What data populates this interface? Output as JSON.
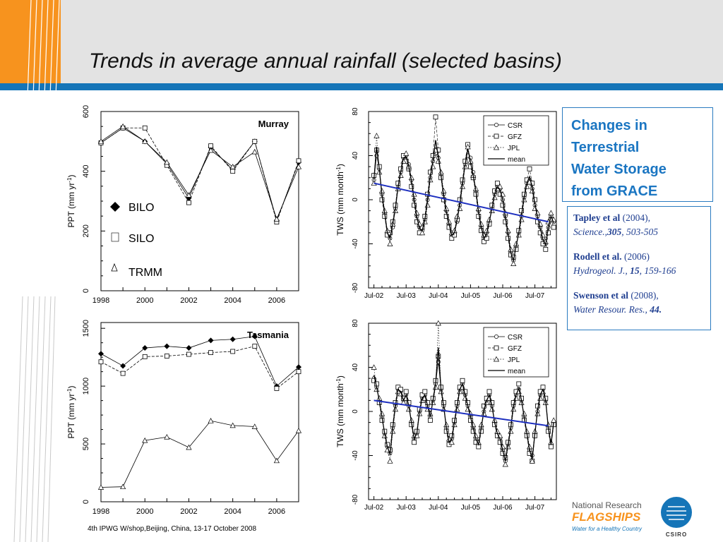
{
  "title": "Trends in average annual rainfall (selected basins)",
  "footer": "4th IPWG W/shop,Beijing, China, 13-17 October 2008",
  "grace_box": [
    "Changes in",
    "Terrestrial",
    "Water Storage",
    "from GRACE"
  ],
  "references": [
    {
      "author": "Tapley et al",
      "year": " (2004),",
      "journal": "Science.,",
      "volume": "305",
      "pages": ", 503-505"
    },
    {
      "author": "Rodell et al.",
      "year": " (2006)",
      "journal": "Hydrogeol. J.,",
      "volume": "15",
      "pages": ", 159-166"
    },
    {
      "author": "Swenson et al",
      "year": " (2008),",
      "journal": "Water Resour. Res.,",
      "volume": "44",
      "pages": "."
    }
  ],
  "logo": {
    "line1": "National Research",
    "line2": "FLAGSHIPS",
    "line3": "Water for a Healthy Country",
    "csiro": "CSIRO"
  },
  "colors": {
    "orange": "#f7931e",
    "accent_blue": "#1575b8",
    "text_blue": "#1b76c2",
    "trend_line": "#1d2fbf"
  },
  "chart_data": [
    {
      "type": "line",
      "title": "Murray",
      "ylabel": "PPT (mm yr-1)",
      "xlabel": "",
      "x": [
        1998,
        1999,
        2000,
        2001,
        2002,
        2003,
        2004,
        2005,
        2006,
        2007
      ],
      "xticks": [
        "1998",
        "2000",
        "2002",
        "2004",
        "2006"
      ],
      "yticks": [
        "0",
        "200",
        "400",
        "600"
      ],
      "ylim": [
        0,
        600
      ],
      "xlim": [
        1998,
        2007
      ],
      "legend": {
        "placement": "left",
        "entries": [
          "BILO",
          "SILO",
          "TRMM"
        ]
      },
      "series": [
        {
          "name": "BILO",
          "marker": "diamond",
          "values": [
            495,
            545,
            500,
            425,
            310,
            480,
            405,
            500,
            235,
            430
          ]
        },
        {
          "name": "SILO",
          "marker": "square",
          "values": [
            495,
            545,
            545,
            420,
            295,
            485,
            400,
            500,
            230,
            435
          ]
        },
        {
          "name": "TRMM",
          "marker": "triangle",
          "values": [
            500,
            550,
            500,
            430,
            320,
            470,
            415,
            465,
            240,
            415
          ]
        }
      ]
    },
    {
      "type": "line",
      "title": "Tasmania",
      "ylabel": "PPT (mm yr-1)",
      "xlabel": "",
      "x": [
        1998,
        1999,
        2000,
        2001,
        2002,
        2003,
        2004,
        2005,
        2006,
        2007
      ],
      "xticks": [
        "1998",
        "2000",
        "2002",
        "2004",
        "2006"
      ],
      "yticks": [
        "0",
        "500",
        "1000",
        "1500"
      ],
      "ylim": [
        0,
        1550
      ],
      "xlim": [
        1998,
        2007
      ],
      "series": [
        {
          "name": "BILO",
          "marker": "diamond",
          "values": [
            1280,
            1175,
            1330,
            1345,
            1330,
            1395,
            1405,
            1430,
            1000,
            1165
          ]
        },
        {
          "name": "SILO",
          "marker": "square",
          "values": [
            1210,
            1110,
            1255,
            1260,
            1275,
            1290,
            1300,
            1345,
            980,
            1125
          ]
        },
        {
          "name": "TRMM",
          "marker": "triangle",
          "values": [
            125,
            130,
            530,
            560,
            470,
            700,
            660,
            650,
            355,
            615
          ]
        }
      ]
    },
    {
      "type": "line",
      "title": "",
      "ylabel": "TWS (mm month-1)",
      "xlabel": "",
      "xticks": [
        "Jul-02",
        "Jul-03",
        "Jul-04",
        "Jul-05",
        "Jul-06",
        "Jul-07"
      ],
      "xtick_pos": [
        0,
        12,
        24,
        36,
        48,
        60
      ],
      "x": [
        0,
        1,
        2,
        3,
        4,
        5,
        6,
        7,
        8,
        9,
        10,
        11,
        12,
        13,
        14,
        15,
        16,
        17,
        18,
        19,
        20,
        21,
        22,
        23,
        24,
        25,
        26,
        27,
        28,
        29,
        30,
        31,
        32,
        33,
        34,
        35,
        36,
        37,
        38,
        39,
        40,
        41,
        42,
        43,
        44,
        45,
        46,
        47,
        48,
        49,
        50,
        51,
        52,
        53,
        54,
        55,
        56,
        57,
        58,
        59,
        60,
        61,
        62,
        63,
        64,
        65,
        66,
        67
      ],
      "yticks": [
        "-80",
        "-40",
        "0",
        "40",
        "80"
      ],
      "ylim": [
        -80,
        80
      ],
      "xlim": [
        -2,
        68
      ],
      "legend": {
        "placement": "top-right",
        "entries": [
          "CSR",
          "GFZ",
          "JPL",
          "mean"
        ]
      },
      "series": [
        {
          "name": "CSR",
          "marker": "circle",
          "values": [
            18,
            40,
            28,
            5,
            -12,
            -30,
            -35,
            -25,
            -8,
            12,
            25,
            38,
            40,
            32,
            18,
            0,
            -15,
            -25,
            -28,
            -18,
            0,
            20,
            35,
            42,
            38,
            22,
            5,
            -10,
            -22,
            -32,
            -30,
            -20,
            -5,
            15,
            32,
            40,
            38,
            25,
            8,
            -10,
            -25,
            -35,
            -30,
            -20,
            -8,
            5,
            12,
            10,
            0,
            -15,
            -30,
            -48,
            -55,
            -42,
            -30,
            -15,
            2,
            15,
            18,
            10,
            -5,
            -15,
            -25,
            -35,
            -40,
            -25,
            -15,
            -20
          ]
        },
        {
          "name": "GFZ",
          "marker": "square",
          "values": [
            22,
            45,
            30,
            0,
            -15,
            -32,
            -30,
            -20,
            -5,
            15,
            28,
            40,
            35,
            28,
            12,
            -5,
            -20,
            -30,
            -25,
            -15,
            5,
            25,
            40,
            75,
            45,
            20,
            0,
            -15,
            -25,
            -35,
            -32,
            -18,
            0,
            18,
            35,
            50,
            30,
            20,
            5,
            -15,
            -28,
            -38,
            -35,
            -22,
            -5,
            8,
            15,
            5,
            -5,
            -20,
            -35,
            -50,
            -52,
            -45,
            -28,
            -10,
            5,
            18,
            28,
            15,
            0,
            -20,
            -30,
            -40,
            -45,
            -30,
            -18,
            -25
          ]
        },
        {
          "name": "JPL",
          "marker": "triangle",
          "values": [
            15,
            58,
            25,
            8,
            -10,
            -28,
            -40,
            -22,
            -10,
            10,
            22,
            35,
            42,
            30,
            20,
            5,
            -12,
            -22,
            -30,
            -20,
            -5,
            18,
            30,
            45,
            35,
            25,
            8,
            -8,
            -20,
            -30,
            -28,
            -15,
            -8,
            12,
            30,
            48,
            35,
            22,
            10,
            -8,
            -22,
            -32,
            -28,
            -18,
            -10,
            2,
            10,
            12,
            5,
            -12,
            -28,
            -45,
            -58,
            -40,
            -32,
            -18,
            0,
            12,
            16,
            8,
            -8,
            -12,
            -22,
            -32,
            -38,
            -20,
            -12,
            -18
          ]
        },
        {
          "name": "mean",
          "marker": "none",
          "values": [
            18,
            48,
            28,
            4,
            -12,
            -30,
            -35,
            -22,
            -8,
            12,
            25,
            38,
            39,
            30,
            17,
            0,
            -16,
            -26,
            -28,
            -18,
            0,
            21,
            35,
            54,
            39,
            22,
            4,
            -11,
            -22,
            -32,
            -30,
            -18,
            -4,
            15,
            32,
            46,
            34,
            22,
            8,
            -11,
            -25,
            -35,
            -31,
            -20,
            -8,
            5,
            12,
            9,
            0,
            -16,
            -31,
            -48,
            -55,
            -42,
            -30,
            -14,
            2,
            15,
            21,
            11,
            -4,
            -16,
            -26,
            -36,
            -41,
            -25,
            -15,
            -21
          ]
        }
      ],
      "trend": {
        "from": [
          0,
          15
        ],
        "to": [
          65,
          -20
        ]
      }
    },
    {
      "type": "line",
      "title": "",
      "ylabel": "TWS (mm month-1)",
      "xlabel": "",
      "xticks": [
        "Jul-02",
        "Jul-03",
        "Jul-04",
        "Jul-05",
        "Jul-06",
        "Jul-07"
      ],
      "xtick_pos": [
        0,
        12,
        24,
        36,
        48,
        60
      ],
      "x": [
        0,
        1,
        2,
        3,
        4,
        5,
        6,
        7,
        8,
        9,
        10,
        11,
        12,
        13,
        14,
        15,
        16,
        17,
        18,
        19,
        20,
        21,
        22,
        23,
        24,
        25,
        26,
        27,
        28,
        29,
        30,
        31,
        32,
        33,
        34,
        35,
        36,
        37,
        38,
        39,
        40,
        41,
        42,
        43,
        44,
        45,
        46,
        47,
        48,
        49,
        50,
        51,
        52,
        53,
        54,
        55,
        56,
        57,
        58,
        59,
        60,
        61,
        62,
        63,
        64,
        65,
        66,
        67
      ],
      "yticks": [
        "-80",
        "-40",
        "0",
        "40",
        "80"
      ],
      "ylim": [
        -80,
        80
      ],
      "xlim": [
        -2,
        68
      ],
      "legend": {
        "placement": "top-right",
        "entries": [
          "CSR",
          "GFZ",
          "JPL",
          "mean"
        ]
      },
      "series": [
        {
          "name": "CSR",
          "marker": "circle",
          "values": [
            30,
            22,
            10,
            -5,
            -20,
            -32,
            -38,
            -15,
            5,
            20,
            18,
            10,
            15,
            5,
            -10,
            -25,
            -20,
            0,
            12,
            15,
            5,
            -5,
            10,
            25,
            45,
            20,
            5,
            -15,
            -28,
            -25,
            -10,
            5,
            20,
            25,
            15,
            5,
            -5,
            -15,
            -25,
            -30,
            -15,
            0,
            10,
            15,
            5,
            -10,
            -20,
            -25,
            -35,
            -45,
            -30,
            -15,
            5,
            15,
            20,
            10,
            -5,
            -20,
            -35,
            -40,
            -20,
            0,
            15,
            20,
            10,
            -15,
            -30,
            -10
          ]
        },
        {
          "name": "GFZ",
          "marker": "square",
          "values": [
            28,
            25,
            8,
            -8,
            -18,
            -30,
            -35,
            -12,
            8,
            22,
            20,
            12,
            18,
            8,
            -12,
            -28,
            -18,
            2,
            15,
            18,
            8,
            -8,
            12,
            28,
            50,
            22,
            8,
            -18,
            -30,
            -22,
            -8,
            8,
            22,
            28,
            18,
            8,
            -8,
            -18,
            -28,
            -32,
            -18,
            5,
            12,
            18,
            8,
            -12,
            -22,
            -28,
            -38,
            -42,
            -28,
            -12,
            8,
            18,
            25,
            12,
            -8,
            -22,
            -38,
            -45,
            -22,
            5,
            18,
            22,
            12,
            -18,
            -32,
            -12
          ]
        },
        {
          "name": "JPL",
          "marker": "triangle",
          "values": [
            40,
            20,
            12,
            -2,
            -22,
            -35,
            -45,
            -18,
            2,
            18,
            16,
            8,
            12,
            2,
            -8,
            -22,
            -22,
            -2,
            10,
            12,
            2,
            -2,
            8,
            22,
            80,
            18,
            2,
            -12,
            -25,
            -28,
            -12,
            2,
            18,
            22,
            12,
            2,
            -2,
            -12,
            -22,
            -28,
            -12,
            -2,
            8,
            12,
            2,
            -8,
            -18,
            -22,
            -32,
            -48,
            -32,
            -18,
            2,
            12,
            18,
            8,
            -2,
            -18,
            -32,
            -45,
            -18,
            -2,
            12,
            18,
            8,
            -12,
            -28,
            -8
          ]
        },
        {
          "name": "mean",
          "marker": "none",
          "values": [
            33,
            22,
            10,
            -5,
            -20,
            -32,
            -39,
            -15,
            5,
            20,
            18,
            10,
            15,
            5,
            -10,
            -25,
            -20,
            0,
            12,
            15,
            5,
            -5,
            10,
            25,
            58,
            20,
            5,
            -15,
            -28,
            -25,
            -10,
            5,
            20,
            25,
            15,
            5,
            -5,
            -15,
            -25,
            -30,
            -15,
            1,
            10,
            15,
            5,
            -10,
            -20,
            -25,
            -35,
            -45,
            -30,
            -15,
            5,
            15,
            21,
            10,
            -5,
            -20,
            -35,
            -43,
            -20,
            1,
            15,
            20,
            10,
            -15,
            -30,
            -10
          ]
        }
      ],
      "trend": {
        "from": [
          0,
          10
        ],
        "to": [
          65,
          -13
        ]
      }
    }
  ]
}
